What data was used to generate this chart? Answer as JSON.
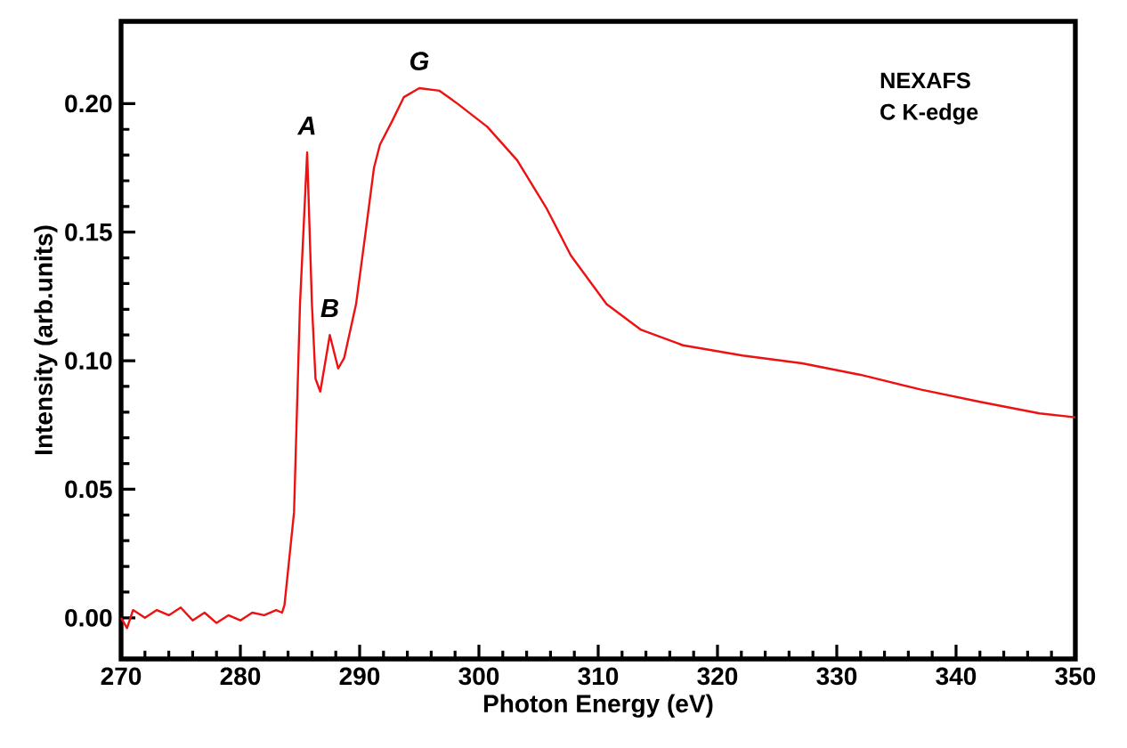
{
  "chart_data": {
    "type": "line",
    "xlabel": "Photon Energy (eV)",
    "ylabel": "Intensity (arb.units)",
    "xlim": [
      270,
      350
    ],
    "ylim": [
      -0.016,
      0.232
    ],
    "xticks": [
      270,
      280,
      290,
      300,
      310,
      320,
      330,
      340,
      350
    ],
    "yticks": [
      {
        "value": 0,
        "label": "0.00"
      },
      {
        "value": 0.05,
        "label": "0.05"
      },
      {
        "value": 0.1,
        "label": "0.10"
      },
      {
        "value": 0.15,
        "label": "0.15"
      },
      {
        "value": 0.2,
        "label": "0.20"
      }
    ],
    "grid": false,
    "marker": "none",
    "line_style": "solid",
    "series": [
      {
        "color": "#ee1111",
        "x": [
          270,
          270.5,
          271,
          272,
          273,
          274,
          275,
          276,
          277,
          278,
          279,
          280,
          281,
          282,
          283,
          283.5,
          283.7,
          284.5,
          285.0,
          285.6,
          286.0,
          286.3,
          286.7,
          287.5,
          288.2,
          288.7,
          289.7,
          290.5,
          291.2,
          291.7,
          292.7,
          293.7,
          295.0,
          296.7,
          298.2,
          300.7,
          303.2,
          305.7,
          307.7,
          310.7,
          313.6,
          317.1,
          322.1,
          327.1,
          332.0,
          337.1,
          342.0,
          347.0,
          350
        ],
        "values": [
          0.0,
          -0.004,
          0.003,
          0.0,
          0.003,
          0.001,
          0.004,
          -0.001,
          0.002,
          -0.002,
          0.001,
          -0.001,
          0.002,
          0.001,
          0.003,
          0.002,
          0.005,
          0.041,
          0.122,
          0.181,
          0.122,
          0.093,
          0.088,
          0.11,
          0.097,
          0.101,
          0.122,
          0.15,
          0.175,
          0.184,
          0.193,
          0.2025,
          0.206,
          0.205,
          0.2,
          0.191,
          0.178,
          0.159,
          0.141,
          0.122,
          0.112,
          0.106,
          0.102,
          0.099,
          0.0945,
          0.0887,
          0.084,
          0.0795,
          0.078
        ]
      }
    ],
    "annotations": [
      {
        "text": "*A*",
        "x": 285.6,
        "y": 0.181
      },
      {
        "text": "*B*",
        "x": 287.5,
        "y": 0.11
      },
      {
        "text": "*G*",
        "x": 295.0,
        "y": 0.206
      },
      "NEXAFS",
      "C K-edge"
    ]
  }
}
